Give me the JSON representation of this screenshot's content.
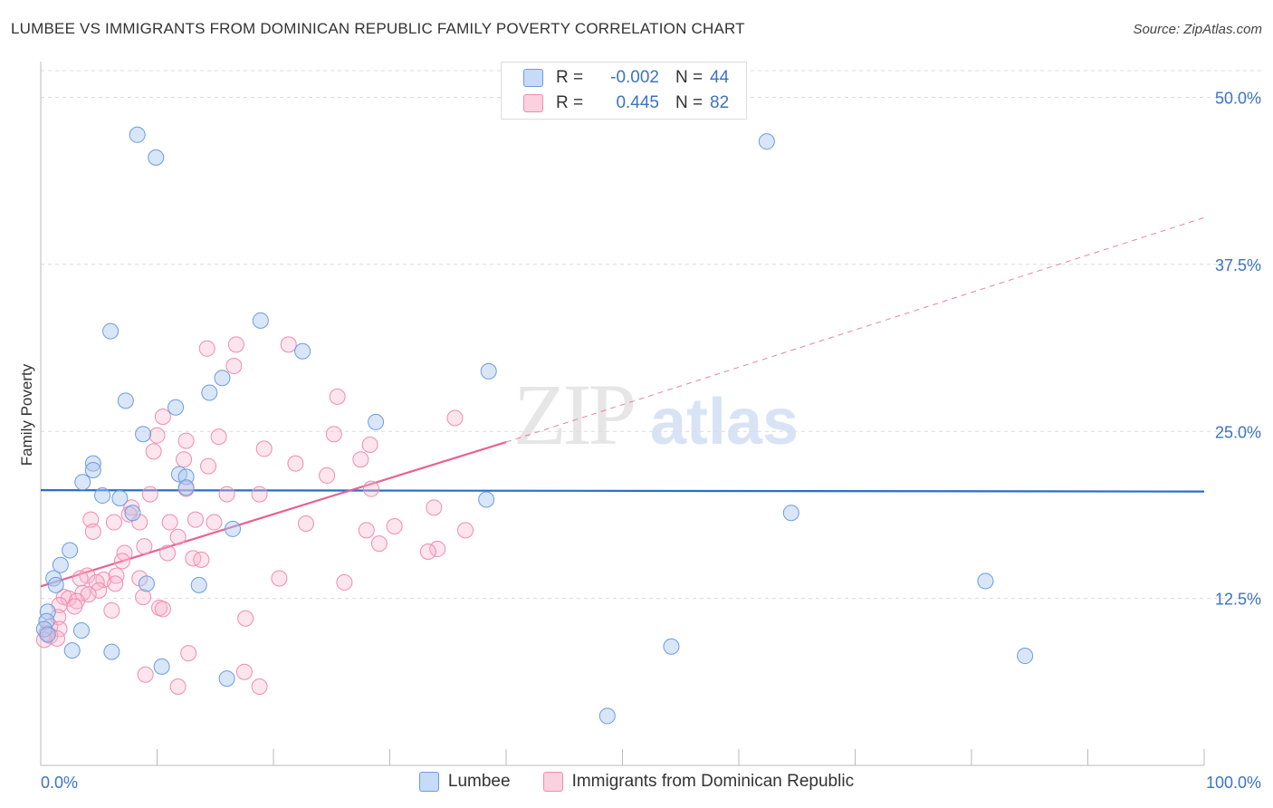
{
  "title": "LUMBEE VS IMMIGRANTS FROM DOMINICAN REPUBLIC FAMILY POVERTY CORRELATION CHART",
  "source": "Source: ZipAtlas.com",
  "watermark": {
    "zip": "ZIP",
    "atlas": "atlas"
  },
  "legend_top": [
    {
      "r_label": "R =",
      "r_value": "-0.002",
      "n_label": "N =",
      "n_value": "44"
    },
    {
      "r_label": "R =",
      "r_value": "0.445",
      "n_label": "N =",
      "n_value": "82"
    }
  ],
  "chart_data": {
    "type": "scatter",
    "ylabel": "Family Poverty",
    "xlabel": "",
    "xlim": [
      0,
      100
    ],
    "ylim": [
      0,
      52
    ],
    "x_tick_labels": [
      "0.0%",
      "100.0%"
    ],
    "y_ticks": [
      12.5,
      25.0,
      37.5,
      50.0
    ],
    "y_tick_labels": [
      "12.5%",
      "25.0%",
      "37.5%",
      "50.0%"
    ],
    "grid": true,
    "colors": {
      "Lumbee": "#6b9de0",
      "Immigrants": "#f08cb0",
      "lumbee_line": "#2a6dc9",
      "immig_line": "#e8628f"
    },
    "series": [
      {
        "name": "Lumbee",
        "trend": {
          "x0": 0,
          "y0": 20.6,
          "x1": 100,
          "y1": 20.5
        },
        "points": [
          [
            8.3,
            47.2
          ],
          [
            9.9,
            45.5
          ],
          [
            62.4,
            46.7
          ],
          [
            18.9,
            33.3
          ],
          [
            6.0,
            32.5
          ],
          [
            22.5,
            31.0
          ],
          [
            38.5,
            29.5
          ],
          [
            15.6,
            29.0
          ],
          [
            14.5,
            27.9
          ],
          [
            7.3,
            27.3
          ],
          [
            11.6,
            26.8
          ],
          [
            28.8,
            25.7
          ],
          [
            8.8,
            24.8
          ],
          [
            4.5,
            22.6
          ],
          [
            4.5,
            22.1
          ],
          [
            11.9,
            21.8
          ],
          [
            12.5,
            21.6
          ],
          [
            3.6,
            21.2
          ],
          [
            12.5,
            20.8
          ],
          [
            5.3,
            20.2
          ],
          [
            6.8,
            20.0
          ],
          [
            38.3,
            19.9
          ],
          [
            64.5,
            18.9
          ],
          [
            7.9,
            18.9
          ],
          [
            16.5,
            17.7
          ],
          [
            2.5,
            16.1
          ],
          [
            1.7,
            15.0
          ],
          [
            1.1,
            14.0
          ],
          [
            1.3,
            13.5
          ],
          [
            9.1,
            13.6
          ],
          [
            13.6,
            13.5
          ],
          [
            81.2,
            13.8
          ],
          [
            0.6,
            11.5
          ],
          [
            0.5,
            10.8
          ],
          [
            3.5,
            10.1
          ],
          [
            2.7,
            8.6
          ],
          [
            6.1,
            8.5
          ],
          [
            54.2,
            8.9
          ],
          [
            84.6,
            8.2
          ],
          [
            10.4,
            7.4
          ],
          [
            16.0,
            6.5
          ],
          [
            48.7,
            3.7
          ],
          [
            0.3,
            10.2
          ],
          [
            0.6,
            9.8
          ]
        ]
      },
      {
        "name": "Immigrants from Dominican Republic",
        "trend": {
          "x0": 0,
          "y0": 13.4,
          "x1": 40,
          "y1": 24.2,
          "dash_x1": 100,
          "dash_y1": 41.0
        },
        "points": [
          [
            16.8,
            31.5
          ],
          [
            14.3,
            31.2
          ],
          [
            21.3,
            31.5
          ],
          [
            16.6,
            29.9
          ],
          [
            25.5,
            27.6
          ],
          [
            35.6,
            26.0
          ],
          [
            10.5,
            26.1
          ],
          [
            15.3,
            24.6
          ],
          [
            10.0,
            24.7
          ],
          [
            12.5,
            24.3
          ],
          [
            25.2,
            24.8
          ],
          [
            28.3,
            24.0
          ],
          [
            19.2,
            23.7
          ],
          [
            9.7,
            23.5
          ],
          [
            12.3,
            22.9
          ],
          [
            27.5,
            22.9
          ],
          [
            21.9,
            22.6
          ],
          [
            14.4,
            22.4
          ],
          [
            24.6,
            21.7
          ],
          [
            12.5,
            20.7
          ],
          [
            28.4,
            20.7
          ],
          [
            9.4,
            20.3
          ],
          [
            16.0,
            20.3
          ],
          [
            18.8,
            20.3
          ],
          [
            7.8,
            19.3
          ],
          [
            33.8,
            19.3
          ],
          [
            7.6,
            18.8
          ],
          [
            4.3,
            18.4
          ],
          [
            13.3,
            18.4
          ],
          [
            14.9,
            18.2
          ],
          [
            11.1,
            18.2
          ],
          [
            6.3,
            18.2
          ],
          [
            8.5,
            18.2
          ],
          [
            22.8,
            18.1
          ],
          [
            30.4,
            17.9
          ],
          [
            28.0,
            17.6
          ],
          [
            36.5,
            17.6
          ],
          [
            4.5,
            17.5
          ],
          [
            11.8,
            17.1
          ],
          [
            29.1,
            16.6
          ],
          [
            8.9,
            16.4
          ],
          [
            34.1,
            16.2
          ],
          [
            33.3,
            16.0
          ],
          [
            10.9,
            15.9
          ],
          [
            7.2,
            15.9
          ],
          [
            13.1,
            15.5
          ],
          [
            13.8,
            15.4
          ],
          [
            7.0,
            15.3
          ],
          [
            6.5,
            14.2
          ],
          [
            4.0,
            14.2
          ],
          [
            3.4,
            14.0
          ],
          [
            8.5,
            14.0
          ],
          [
            20.5,
            14.0
          ],
          [
            5.4,
            13.9
          ],
          [
            26.1,
            13.7
          ],
          [
            4.8,
            13.7
          ],
          [
            6.4,
            13.6
          ],
          [
            5.0,
            13.1
          ],
          [
            3.6,
            12.9
          ],
          [
            4.1,
            12.8
          ],
          [
            2.0,
            12.6
          ],
          [
            8.8,
            12.6
          ],
          [
            2.4,
            12.5
          ],
          [
            3.1,
            12.3
          ],
          [
            1.6,
            12.0
          ],
          [
            2.9,
            11.9
          ],
          [
            10.2,
            11.8
          ],
          [
            10.5,
            11.7
          ],
          [
            6.1,
            11.6
          ],
          [
            1.5,
            11.1
          ],
          [
            17.6,
            11.0
          ],
          [
            0.8,
            10.4
          ],
          [
            1.6,
            10.2
          ],
          [
            0.5,
            9.9
          ],
          [
            0.8,
            9.7
          ],
          [
            1.4,
            9.5
          ],
          [
            0.3,
            9.4
          ],
          [
            12.7,
            8.4
          ],
          [
            17.5,
            7.0
          ],
          [
            9.0,
            6.8
          ],
          [
            11.8,
            5.9
          ],
          [
            18.8,
            5.9
          ]
        ]
      }
    ]
  },
  "legend_bottom": [
    "Lumbee",
    "Immigrants from Dominican Republic"
  ]
}
